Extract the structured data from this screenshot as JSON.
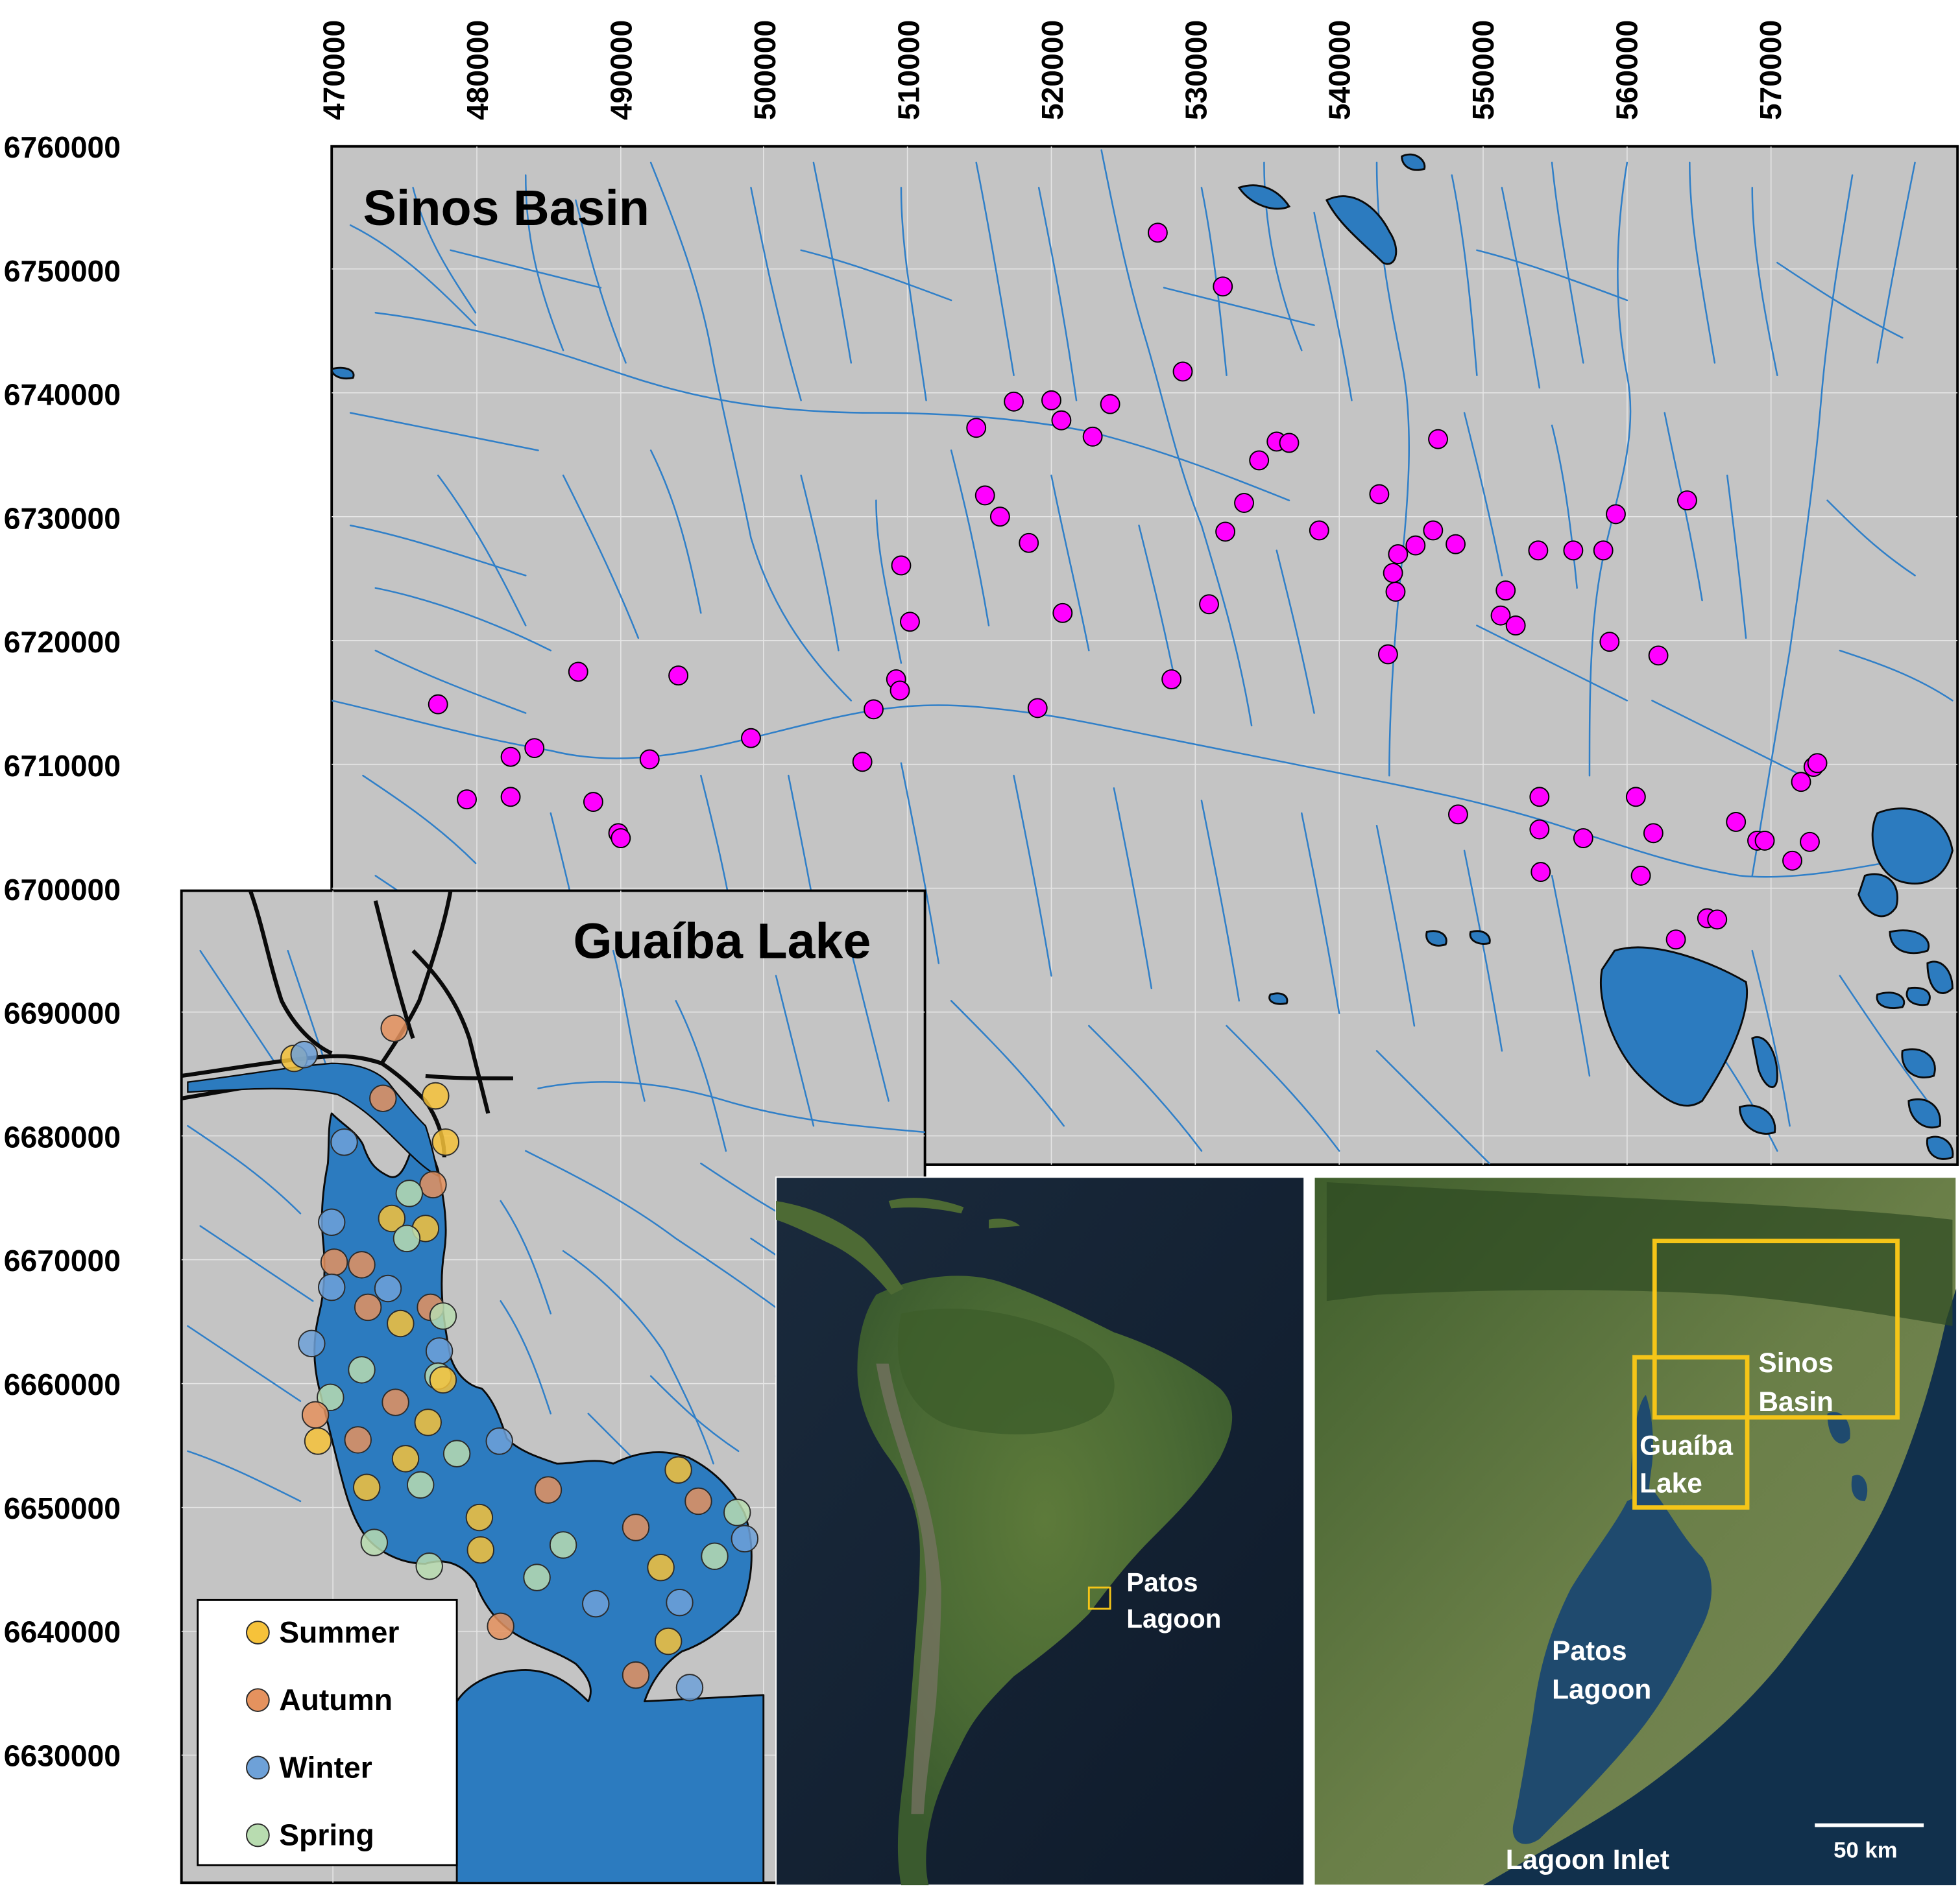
{
  "x_axis_labels": [
    "470000",
    "480000",
    "490000",
    "500000",
    "510000",
    "520000",
    "530000",
    "540000",
    "550000",
    "560000",
    "570000"
  ],
  "y_axis_labels": [
    "6760000",
    "6750000",
    "6740000",
    "6730000",
    "6720000",
    "6710000",
    "6700000",
    "6690000",
    "6680000",
    "6670000",
    "6660000",
    "6650000",
    "6640000",
    "6630000"
  ],
  "sinos": {
    "title": "Sinos Basin",
    "point_color": "#ff00ff",
    "sites": [
      [
        925,
        186
      ],
      [
        977,
        229
      ],
      [
        945,
        297
      ],
      [
        780,
        342
      ],
      [
        810,
        321
      ],
      [
        840,
        320
      ],
      [
        848,
        336
      ],
      [
        873,
        349
      ],
      [
        887,
        323
      ],
      [
        1020,
        353
      ],
      [
        1030,
        354
      ],
      [
        1006,
        368
      ],
      [
        994,
        402
      ],
      [
        979,
        425
      ],
      [
        787,
        396
      ],
      [
        799,
        413
      ],
      [
        822,
        434
      ],
      [
        849,
        490
      ],
      [
        720,
        452
      ],
      [
        727,
        497
      ],
      [
        716,
        543
      ],
      [
        719,
        552
      ],
      [
        698,
        567
      ],
      [
        689,
        609
      ],
      [
        829,
        566
      ],
      [
        936,
        543
      ],
      [
        966,
        483
      ],
      [
        1054,
        424
      ],
      [
        1102,
        395
      ],
      [
        1117,
        443
      ],
      [
        1131,
        436
      ],
      [
        1145,
        424
      ],
      [
        1149,
        351
      ],
      [
        1163,
        435
      ],
      [
        1113,
        458
      ],
      [
        1115,
        473
      ],
      [
        1109,
        523
      ],
      [
        1229,
        440
      ],
      [
        1257,
        440
      ],
      [
        1281,
        440
      ],
      [
        1291,
        411
      ],
      [
        1348,
        400
      ],
      [
        1203,
        472
      ],
      [
        1199,
        492
      ],
      [
        1211,
        500
      ],
      [
        1286,
        513
      ],
      [
        1325,
        524
      ],
      [
        350,
        563
      ],
      [
        373,
        639
      ],
      [
        408,
        605
      ],
      [
        427,
        598
      ],
      [
        408,
        637
      ],
      [
        462,
        537
      ],
      [
        474,
        641
      ],
      [
        542,
        540
      ],
      [
        494,
        666
      ],
      [
        496,
        670
      ],
      [
        519,
        607
      ],
      [
        600,
        590
      ],
      [
        1165,
        651
      ],
      [
        1230,
        637
      ],
      [
        1230,
        663
      ],
      [
        1231,
        697
      ],
      [
        1265,
        670
      ],
      [
        1307,
        637
      ],
      [
        1321,
        666
      ],
      [
        1311,
        700
      ],
      [
        1339,
        751
      ],
      [
        1364,
        734
      ],
      [
        1372,
        735
      ],
      [
        1387,
        657
      ],
      [
        1404,
        672
      ],
      [
        1410,
        672
      ],
      [
        1432,
        688
      ],
      [
        1439,
        625
      ],
      [
        1446,
        673
      ],
      [
        1449,
        613
      ],
      [
        1452,
        610
      ]
    ]
  },
  "guaiba": {
    "title": "Guaíba Lake",
    "season_colors": {
      "summer": "#f6c23a",
      "autumn": "#e5925e",
      "winter": "#6ea1d8",
      "spring": "#b8dcb0"
    },
    "legend": [
      {
        "key": "summer",
        "label": "Summer"
      },
      {
        "key": "autumn",
        "label": "Autumn"
      },
      {
        "key": "winter",
        "label": "Winter"
      },
      {
        "key": "spring",
        "label": "Spring"
      }
    ],
    "sites": [
      [
        315,
        822,
        "autumn"
      ],
      [
        235,
        846,
        "summer"
      ],
      [
        243,
        843,
        "winter"
      ],
      [
        306,
        878,
        "autumn"
      ],
      [
        348,
        876,
        "summer"
      ],
      [
        356,
        913,
        "summer"
      ],
      [
        275,
        913,
        "winter"
      ],
      [
        346,
        947,
        "autumn"
      ],
      [
        327,
        954,
        "spring"
      ],
      [
        313,
        974,
        "summer"
      ],
      [
        340,
        982,
        "summer"
      ],
      [
        325,
        990,
        "spring"
      ],
      [
        265,
        977,
        "winter"
      ],
      [
        267,
        1009,
        "autumn"
      ],
      [
        289,
        1011,
        "autumn"
      ],
      [
        265,
        1029,
        "winter"
      ],
      [
        310,
        1030,
        "winter"
      ],
      [
        294,
        1045,
        "autumn"
      ],
      [
        344,
        1045,
        "autumn"
      ],
      [
        354,
        1052,
        "spring"
      ],
      [
        320,
        1058,
        "summer"
      ],
      [
        249,
        1074,
        "winter"
      ],
      [
        351,
        1080,
        "winter"
      ],
      [
        289,
        1095,
        "spring"
      ],
      [
        350,
        1100,
        "spring"
      ],
      [
        354,
        1103,
        "summer"
      ],
      [
        264,
        1117,
        "spring"
      ],
      [
        252,
        1131,
        "autumn"
      ],
      [
        316,
        1121,
        "autumn"
      ],
      [
        342,
        1137,
        "summer"
      ],
      [
        254,
        1152,
        "summer"
      ],
      [
        286,
        1151,
        "autumn"
      ],
      [
        324,
        1166,
        "summer"
      ],
      [
        365,
        1162,
        "spring"
      ],
      [
        399,
        1152,
        "winter"
      ],
      [
        293,
        1189,
        "summer"
      ],
      [
        336,
        1187,
        "spring"
      ],
      [
        438,
        1191,
        "autumn"
      ],
      [
        542,
        1175,
        "summer"
      ],
      [
        558,
        1200,
        "autumn"
      ],
      [
        589,
        1209,
        "spring"
      ],
      [
        595,
        1230,
        "winter"
      ],
      [
        383,
        1213,
        "summer"
      ],
      [
        384,
        1239,
        "summer"
      ],
      [
        299,
        1233,
        "spring"
      ],
      [
        343,
        1252,
        "spring"
      ],
      [
        450,
        1235,
        "spring"
      ],
      [
        429,
        1261,
        "spring"
      ],
      [
        508,
        1221,
        "autumn"
      ],
      [
        528,
        1253,
        "summer"
      ],
      [
        571,
        1244,
        "spring"
      ],
      [
        543,
        1281,
        "winter"
      ],
      [
        476,
        1282,
        "winter"
      ],
      [
        400,
        1300,
        "autumn"
      ],
      [
        534,
        1312,
        "summer"
      ],
      [
        508,
        1339,
        "autumn"
      ],
      [
        551,
        1349,
        "winter"
      ]
    ]
  },
  "south_america": {
    "label_line1": "Patos",
    "label_line2": "Lagoon"
  },
  "regional": {
    "sinos_line1": "Sinos",
    "sinos_line2": "Basin",
    "guaiba_line1": "Guaíba",
    "guaiba_line2": "Lake",
    "patos_line1": "Patos",
    "patos_line2": "Lagoon",
    "inlet": "Lagoon Inlet",
    "scale": "50 km",
    "box_color": "#f5c518"
  }
}
